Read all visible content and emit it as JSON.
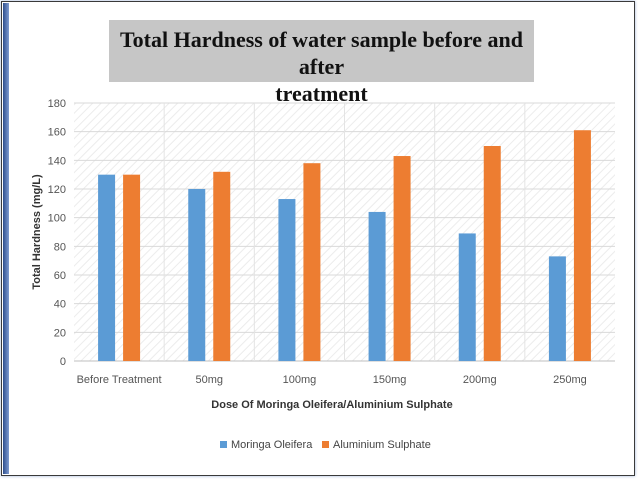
{
  "title": "Total Hardness of water sample before and after treatment",
  "chart_data": {
    "type": "bar",
    "categories": [
      "Before Treatment",
      "50mg",
      "100mg",
      "150mg",
      "200mg",
      "250mg"
    ],
    "series": [
      {
        "name": "Moringa Oleifera",
        "color": "#5b9bd5",
        "values": [
          130,
          120,
          113,
          104,
          89,
          73
        ]
      },
      {
        "name": "Aluminium Sulphate",
        "color": "#ed7d31",
        "values": [
          130,
          132,
          138,
          143,
          150,
          161
        ]
      }
    ],
    "ylabel": "Total Hardness (mg/L)",
    "xlabel": "Dose Of Moringa Oleifera/Aluminium Sulphate",
    "ylim": [
      0,
      180
    ],
    "yticks": [
      0,
      20,
      40,
      60,
      80,
      100,
      120,
      140,
      160,
      180
    ],
    "legend": "bottom",
    "grid": true
  }
}
